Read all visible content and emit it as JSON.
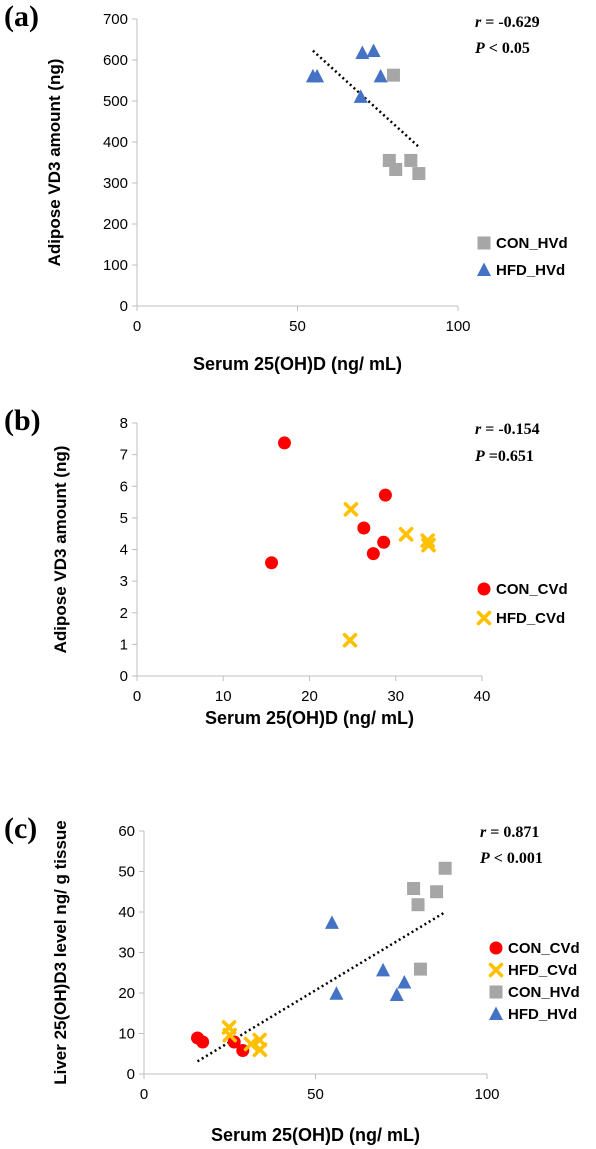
{
  "colors": {
    "CON_HVd": "#a6a6a6",
    "HFD_HVd": "#4472c4",
    "CON_CVd": "#ff0000",
    "HFD_CVd": "#ffc000",
    "axis": "#bfbfbf",
    "trend": "#000000"
  },
  "chart_data": [
    {
      "panel": "(a)",
      "type": "scatter",
      "xlabel": "Serum 25(OH)D (ng/ mL)",
      "ylabel": "Adipose VD3 amount (ng)",
      "xlim": [
        0,
        100
      ],
      "ylim": [
        0,
        700
      ],
      "xticks": [
        0,
        50,
        100
      ],
      "yticks": [
        0,
        100,
        200,
        300,
        400,
        500,
        600,
        700
      ],
      "stat_r_label": "r",
      "stat_r_value": " = -0.629",
      "stat_p_label": "P",
      "stat_p_value": " < 0.05",
      "trendline": true,
      "legend_position": "right",
      "grid": false,
      "series": [
        {
          "name": "CON_HVd",
          "marker": "square",
          "x": [
            79.9,
            78.6,
            80.6,
            85.3,
            87.8
          ],
          "y": [
            563,
            355,
            333,
            355,
            323
          ]
        },
        {
          "name": "HFD_HVd",
          "marker": "triangle",
          "x": [
            54.8,
            56.1,
            69.7,
            70.2,
            73.7,
            75.9
          ],
          "y": [
            560,
            560,
            510,
            617,
            622,
            560
          ]
        }
      ]
    },
    {
      "panel": "(b)",
      "type": "scatter",
      "xlabel": "Serum 25(OH)D (ng/ mL)",
      "ylabel": "Adipose VD3 amount (ng)",
      "xlim": [
        0,
        40
      ],
      "ylim": [
        0,
        8
      ],
      "xticks": [
        0,
        10,
        20,
        30,
        40
      ],
      "yticks": [
        0,
        1,
        2,
        3,
        4,
        5,
        6,
        7,
        8
      ],
      "stat_r_label": "r",
      "stat_r_value": " = -0.154",
      "stat_p_label": "P",
      "stat_p_value": " =0.651",
      "trendline": false,
      "legend_position": "right",
      "grid": false,
      "series": [
        {
          "name": "CON_CVd",
          "marker": "circle",
          "x": [
            15.6,
            17.1,
            26.3,
            27.4,
            28.6,
            28.8
          ],
          "y": [
            3.58,
            7.37,
            4.68,
            3.87,
            4.23,
            5.72
          ]
        },
        {
          "name": "HFD_CVd",
          "marker": "x",
          "x": [
            24.8,
            24.7,
            31.2,
            33.7,
            33.8
          ],
          "y": [
            5.27,
            1.13,
            4.48,
            4.28,
            4.14
          ]
        }
      ]
    },
    {
      "panel": "(c)",
      "type": "scatter",
      "xlabel": "Serum 25(OH)D (ng/ mL)",
      "ylabel": "Liver 25(OH)D3 level ng/ g tissue",
      "xlim": [
        0,
        100
      ],
      "ylim": [
        0,
        60
      ],
      "xticks": [
        0,
        50,
        100
      ],
      "yticks": [
        0,
        10,
        20,
        30,
        40,
        50,
        60
      ],
      "stat_r_label": "r",
      "stat_r_value": " = 0.871",
      "stat_p_label": "P",
      "stat_p_value": " < 0.001",
      "trendline": true,
      "legend_position": "right",
      "grid": false,
      "series": [
        {
          "name": "CON_CVd",
          "marker": "circle",
          "x": [
            15.6,
            17.1,
            26.3,
            28.8
          ],
          "y": [
            8.9,
            7.9,
            7.9,
            5.8
          ]
        },
        {
          "name": "HFD_CVd",
          "marker": "x",
          "x": [
            24.8,
            25.0,
            31.2,
            33.7,
            33.8
          ],
          "y": [
            11.5,
            9.6,
            7.4,
            8.4,
            6.0
          ]
        },
        {
          "name": "CON_HVd",
          "marker": "square",
          "x": [
            78.6,
            79.9,
            80.6,
            85.3,
            87.8
          ],
          "y": [
            45.8,
            41.8,
            25.9,
            45.0,
            50.8
          ]
        },
        {
          "name": "HFD_HVd",
          "marker": "triangle",
          "x": [
            54.8,
            56.1,
            69.7,
            73.7,
            75.9
          ],
          "y": [
            37.3,
            19.8,
            25.6,
            19.5,
            22.6
          ]
        }
      ]
    }
  ]
}
